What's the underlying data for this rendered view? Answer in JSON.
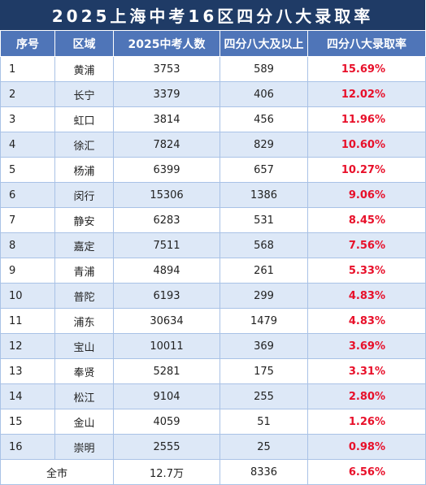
{
  "title": "2025上海中考16区四分八大录取率",
  "headers": [
    "序号",
    "区域",
    "2025中考人数",
    "四分八大及以上",
    "四分八大录取率"
  ],
  "rows": [
    {
      "no": "1",
      "district": "黄浦",
      "students": "3753",
      "admitted": "589",
      "rate": "15.69%"
    },
    {
      "no": "2",
      "district": "长宁",
      "students": "3379",
      "admitted": "406",
      "rate": "12.02%"
    },
    {
      "no": "3",
      "district": "虹口",
      "students": "3814",
      "admitted": "456",
      "rate": "11.96%"
    },
    {
      "no": "4",
      "district": "徐汇",
      "students": "7824",
      "admitted": "829",
      "rate": "10.60%"
    },
    {
      "no": "5",
      "district": "杨浦",
      "students": "6399",
      "admitted": "657",
      "rate": "10.27%"
    },
    {
      "no": "6",
      "district": "闵行",
      "students": "15306",
      "admitted": "1386",
      "rate": "9.06%"
    },
    {
      "no": "7",
      "district": "静安",
      "students": "6283",
      "admitted": "531",
      "rate": "8.45%"
    },
    {
      "no": "8",
      "district": "嘉定",
      "students": "7511",
      "admitted": "568",
      "rate": "7.56%"
    },
    {
      "no": "9",
      "district": "青浦",
      "students": "4894",
      "admitted": "261",
      "rate": "5.33%"
    },
    {
      "no": "10",
      "district": "普陀",
      "students": "6193",
      "admitted": "299",
      "rate": "4.83%"
    },
    {
      "no": "11",
      "district": "浦东",
      "students": "30634",
      "admitted": "1479",
      "rate": "4.83%"
    },
    {
      "no": "12",
      "district": "宝山",
      "students": "10011",
      "admitted": "369",
      "rate": "3.69%"
    },
    {
      "no": "13",
      "district": "奉贤",
      "students": "5281",
      "admitted": "175",
      "rate": "3.31%"
    },
    {
      "no": "14",
      "district": "松江",
      "students": "9104",
      "admitted": "255",
      "rate": "2.80%"
    },
    {
      "no": "15",
      "district": "金山",
      "students": "4059",
      "admitted": "51",
      "rate": "1.26%"
    },
    {
      "no": "16",
      "district": "崇明",
      "students": "2555",
      "admitted": "25",
      "rate": "0.98%"
    }
  ],
  "total": {
    "label": "全市",
    "students": "12.7万",
    "admitted": "8336",
    "rate": "6.56%"
  },
  "colors": {
    "title_bg": "#1f3b66",
    "header_bg": "#4f75b8",
    "stripe_bg": "#dde8f7",
    "border": "#a9c2e6",
    "rate_text": "#e8102a"
  }
}
